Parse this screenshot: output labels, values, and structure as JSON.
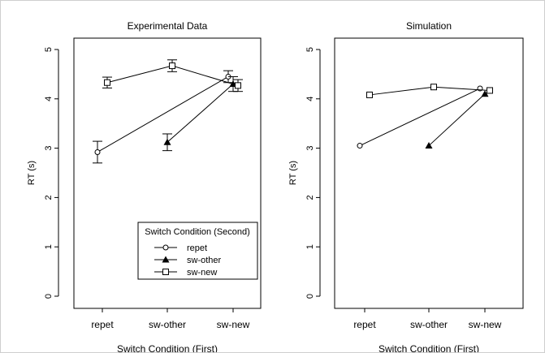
{
  "chart_data": [
    {
      "type": "scatter",
      "title": "Experimental Data",
      "xlabel": "Switch Condition (First)",
      "ylabel": "RT (s)",
      "categories": [
        "repet",
        "sw-other",
        "sw-new"
      ],
      "ylim": [
        0,
        5
      ],
      "yticks": [
        "0",
        "1",
        "2",
        "3",
        "4",
        "5"
      ],
      "grid": false,
      "legend": {
        "title": "Switch Condition (Second)",
        "placement": "bottom-right",
        "entries": [
          {
            "name": "repet",
            "marker": "open-circle"
          },
          {
            "name": "sw-other",
            "marker": "filled-triangle"
          },
          {
            "name": "sw-new",
            "marker": "open-square"
          }
        ]
      },
      "series": [
        {
          "name": "repet",
          "marker": "open-circle",
          "points": [
            {
              "x": "repet",
              "y": 2.92,
              "err": 0.22
            },
            {
              "x": "sw-new",
              "y": 4.45,
              "err": 0.12
            }
          ]
        },
        {
          "name": "sw-other",
          "marker": "filled-triangle",
          "points": [
            {
              "x": "sw-other",
              "y": 3.12,
              "err": 0.17
            },
            {
              "x": "sw-new",
              "y": 4.3,
              "err": 0.15
            }
          ]
        },
        {
          "name": "sw-new",
          "marker": "open-square",
          "points": [
            {
              "x": "repet",
              "y": 4.33,
              "err": 0.11
            },
            {
              "x": "sw-other",
              "y": 4.67,
              "err": 0.12
            },
            {
              "x": "sw-new",
              "y": 4.27,
              "err": 0.12
            }
          ]
        }
      ]
    },
    {
      "type": "scatter",
      "title": "Simulation",
      "xlabel": "Switch Condition (First)",
      "ylabel": "RT (s)",
      "categories": [
        "repet",
        "sw-other",
        "sw-new"
      ],
      "ylim": [
        0,
        5
      ],
      "yticks": [
        "0",
        "1",
        "2",
        "3",
        "4",
        "5"
      ],
      "grid": false,
      "series": [
        {
          "name": "repet",
          "marker": "open-circle",
          "points": [
            {
              "x": "repet",
              "y": 3.05
            },
            {
              "x": "sw-new",
              "y": 4.21
            }
          ]
        },
        {
          "name": "sw-other",
          "marker": "filled-triangle",
          "points": [
            {
              "x": "sw-other",
              "y": 3.05
            },
            {
              "x": "sw-new",
              "y": 4.1
            }
          ]
        },
        {
          "name": "sw-new",
          "marker": "open-square",
          "points": [
            {
              "x": "repet",
              "y": 4.08
            },
            {
              "x": "sw-other",
              "y": 4.24
            },
            {
              "x": "sw-new",
              "y": 4.17
            }
          ]
        }
      ]
    }
  ]
}
